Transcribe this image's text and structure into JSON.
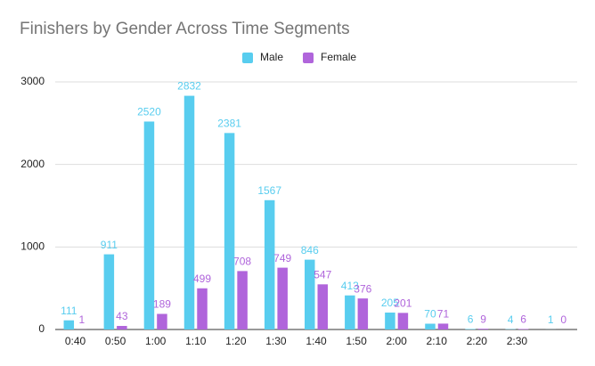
{
  "chart_data": {
    "type": "bar",
    "title": "Finishers by Gender Across Time Segments",
    "categories": [
      "0:40",
      "0:50",
      "1:00",
      "1:10",
      "1:20",
      "1:30",
      "1:40",
      "1:50",
      "2:00",
      "2:10",
      "2:20",
      "2:30",
      null
    ],
    "series": [
      {
        "name": "Male",
        "color": "#58cdef",
        "values": [
          111,
          911,
          2520,
          2832,
          2381,
          1567,
          846,
          413,
          205,
          70,
          6,
          4,
          1
        ]
      },
      {
        "name": "Female",
        "color": "#b065db",
        "values": [
          1,
          43,
          189,
          499,
          708,
          749,
          547,
          376,
          201,
          71,
          9,
          6,
          0
        ]
      }
    ],
    "ylim": [
      0,
      3000
    ],
    "yticks": [
      0,
      1000,
      2000,
      3000
    ],
    "grid": true,
    "legend": "top"
  }
}
